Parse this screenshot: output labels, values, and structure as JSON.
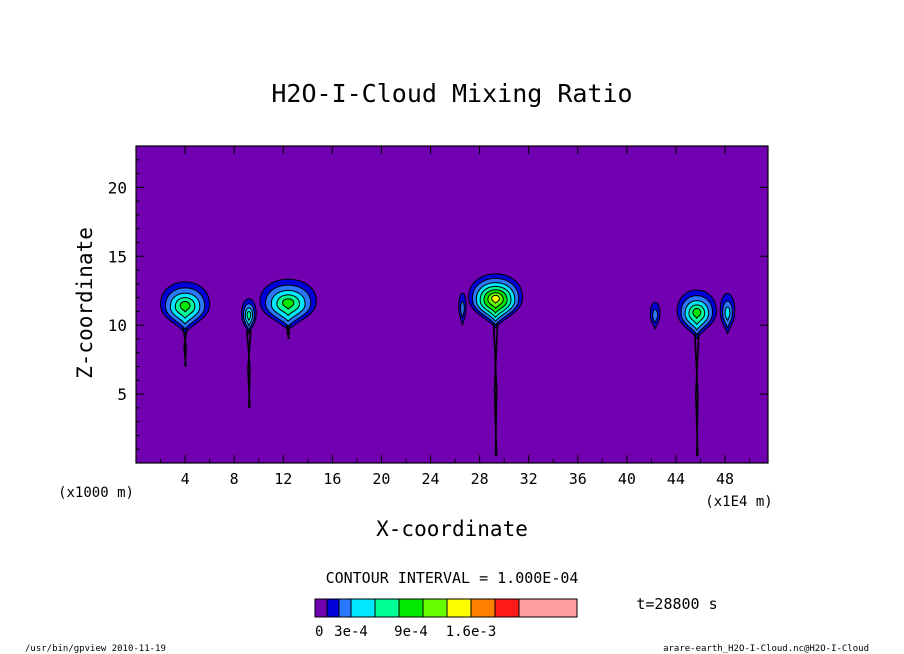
{
  "chart_data": {
    "type": "heatmap",
    "title": "H2O-I-Cloud Mixing Ratio",
    "xlabel": "X-coordinate",
    "ylabel": "Z-coordinate",
    "x_unit_left": "(x1000 m)",
    "x_unit_right": "(x1E4 m)",
    "xlim": [
      0,
      51.5
    ],
    "ylim": [
      0,
      23
    ],
    "xticks": [
      4,
      8,
      12,
      16,
      20,
      24,
      28,
      32,
      36,
      40,
      44,
      48
    ],
    "yticks": [
      5,
      10,
      15,
      20
    ],
    "background_color": "#7000b0",
    "contour_interval_text": "CONTOUR INTERVAL = 1.000E-04",
    "time_label": "t=28800 s",
    "colorbar": {
      "colors": [
        "#7000b0",
        "#0000d8",
        "#2a78ff",
        "#00e8ff",
        "#00ff96",
        "#00ea00",
        "#66ff00",
        "#ffff00",
        "#ff8000",
        "#ff1a1a",
        "#ffa0a0"
      ],
      "tick_labels": [
        "0",
        "3e-4",
        "9e-4",
        "1.6e-3"
      ]
    },
    "clouds": [
      {
        "x": 4.0,
        "z": 11.5,
        "w": 2.0,
        "h": 1.9,
        "levels": 5,
        "stem_to": 7.0
      },
      {
        "x": 9.2,
        "z": 10.8,
        "w": 0.6,
        "h": 1.3,
        "levels": 4,
        "stem_to": 4.0
      },
      {
        "x": 12.4,
        "z": 11.7,
        "w": 2.3,
        "h": 1.9,
        "levels": 5,
        "stem_to": 9.0
      },
      {
        "x": 26.6,
        "z": 11.3,
        "w": 0.3,
        "h": 1.2,
        "levels": 2,
        "stem_to": 11.0
      },
      {
        "x": 29.3,
        "z": 12.0,
        "w": 2.2,
        "h": 2.0,
        "levels": 7,
        "stem_to": 0.5
      },
      {
        "x": 42.3,
        "z": 10.8,
        "w": 0.4,
        "h": 1.0,
        "levels": 2,
        "stem_to": 10.0
      },
      {
        "x": 45.7,
        "z": 11.0,
        "w": 1.6,
        "h": 1.8,
        "levels": 5,
        "stem_to": 0.5
      },
      {
        "x": 48.2,
        "z": 11.0,
        "w": 0.6,
        "h": 1.5,
        "levels": 3,
        "stem_to": 10.0
      }
    ]
  },
  "footer": {
    "left": "/usr/bin/gpview   2010-11-19",
    "right": "arare-earth_H2O-I-Cloud.nc@H2O-I-Cloud"
  }
}
